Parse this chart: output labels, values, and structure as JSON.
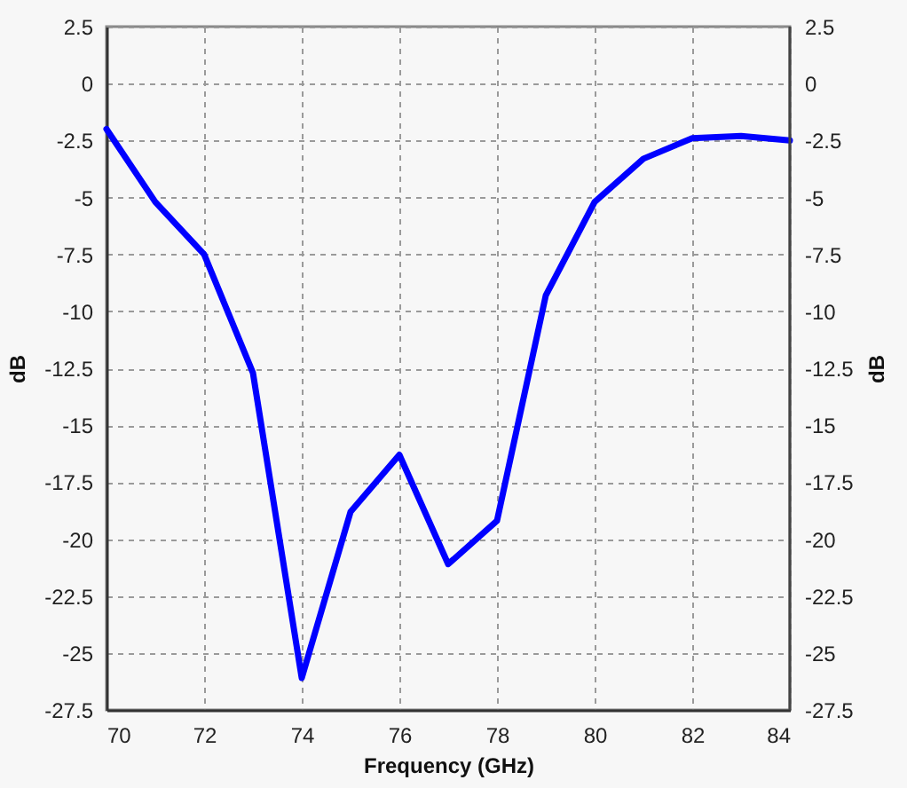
{
  "chart_data": {
    "type": "line",
    "xlabel": "Frequency (GHz)",
    "ylabel": "dB",
    "y2label": "dB",
    "x": [
      70,
      71,
      72,
      73,
      74,
      75,
      76,
      77,
      78,
      79,
      80,
      81,
      82,
      83,
      84
    ],
    "series": [
      {
        "color": "#0000ff",
        "values": [
          -2.0,
          -5.2,
          -7.5,
          -12.7,
          -26.1,
          -18.8,
          -16.3,
          -21.1,
          -19.2,
          -9.3,
          -5.2,
          -3.3,
          -2.4,
          -2.3,
          -2.5
        ]
      }
    ],
    "xlim": [
      70,
      84
    ],
    "xticks": [
      70,
      72,
      74,
      76,
      78,
      80,
      82,
      84
    ],
    "ylim": [
      -27.5,
      2.5
    ],
    "yticks": [
      -27.5,
      -25,
      -22.5,
      -20,
      -17.5,
      -15,
      -12.5,
      -10,
      -7.5,
      -5,
      -2.5,
      0,
      2.5
    ],
    "y2lim": [
      -27.5,
      2.5
    ],
    "y2ticks": [
      -27.5,
      -25,
      -22.5,
      -20,
      -17.5,
      -15,
      -12.5,
      -10,
      -7.5,
      -5,
      -2.5,
      0,
      2.5
    ],
    "grid": true,
    "line_style": "solid"
  }
}
